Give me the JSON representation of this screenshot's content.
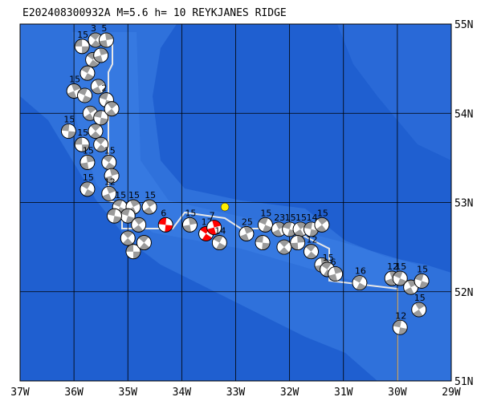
{
  "title": "E202408300932A M=5.6 h= 10 REYKJANES RIDGE",
  "map": {
    "lonlim": [
      -37,
      -29
    ],
    "latlim": [
      51,
      55
    ],
    "lonticks": [
      {
        "value": -37,
        "label": "37W"
      },
      {
        "value": -36,
        "label": "36W"
      },
      {
        "value": -35,
        "label": "35W"
      },
      {
        "value": -34,
        "label": "34W"
      },
      {
        "value": -33,
        "label": "33W"
      },
      {
        "value": -32,
        "label": "32W"
      },
      {
        "value": -31,
        "label": "31W"
      },
      {
        "value": -30,
        "label": "30W"
      },
      {
        "value": -29,
        "label": "29W"
      }
    ],
    "latticks": [
      {
        "value": 51,
        "label": "51N"
      },
      {
        "value": 52,
        "label": "52N"
      },
      {
        "value": 53,
        "label": "53N"
      },
      {
        "value": 54,
        "label": "54N"
      },
      {
        "value": 55,
        "label": "55N"
      }
    ],
    "grid": true,
    "epicenter": {
      "lon": -33.2,
      "lat": 52.95,
      "color": "#ffee00"
    },
    "ball_color": "#9a9a9a",
    "highlight_color": "#ff0000",
    "events": [
      {
        "lon": -35.85,
        "lat": 54.75,
        "label": "15"
      },
      {
        "lon": -35.6,
        "lat": 54.82,
        "label": "3"
      },
      {
        "lon": -35.4,
        "lat": 54.82,
        "label": "5"
      },
      {
        "lon": -35.65,
        "lat": 54.6,
        "label": null
      },
      {
        "lon": -35.5,
        "lat": 54.65,
        "label": null
      },
      {
        "lon": -35.75,
        "lat": 54.45,
        "label": null
      },
      {
        "lon": -36.0,
        "lat": 54.25,
        "label": "15"
      },
      {
        "lon": -35.8,
        "lat": 54.2,
        "label": null
      },
      {
        "lon": -35.55,
        "lat": 54.3,
        "label": null
      },
      {
        "lon": -35.4,
        "lat": 54.15,
        "label": "2"
      },
      {
        "lon": -35.7,
        "lat": 54.0,
        "label": null
      },
      {
        "lon": -35.5,
        "lat": 53.95,
        "label": null
      },
      {
        "lon": -35.3,
        "lat": 54.05,
        "label": null
      },
      {
        "lon": -36.1,
        "lat": 53.8,
        "label": "15"
      },
      {
        "lon": -35.6,
        "lat": 53.8,
        "label": null
      },
      {
        "lon": -35.85,
        "lat": 53.65,
        "label": "15"
      },
      {
        "lon": -35.5,
        "lat": 53.65,
        "label": null
      },
      {
        "lon": -35.75,
        "lat": 53.45,
        "label": "15"
      },
      {
        "lon": -35.35,
        "lat": 53.45,
        "label": "15"
      },
      {
        "lon": -35.3,
        "lat": 53.3,
        "label": null
      },
      {
        "lon": -35.75,
        "lat": 53.15,
        "label": "15"
      },
      {
        "lon": -35.35,
        "lat": 53.1,
        "label": "12"
      },
      {
        "lon": -35.15,
        "lat": 52.95,
        "label": "15"
      },
      {
        "lon": -34.9,
        "lat": 52.95,
        "label": "15"
      },
      {
        "lon": -35.0,
        "lat": 52.85,
        "label": null
      },
      {
        "lon": -34.6,
        "lat": 52.95,
        "label": "15"
      },
      {
        "lon": -35.25,
        "lat": 52.85,
        "label": null
      },
      {
        "lon": -34.8,
        "lat": 52.75,
        "label": null
      },
      {
        "lon": -34.3,
        "lat": 52.75,
        "label": "6",
        "highlight": true
      },
      {
        "lon": -35.0,
        "lat": 52.6,
        "label": null
      },
      {
        "lon": -34.9,
        "lat": 52.45,
        "label": null
      },
      {
        "lon": -34.7,
        "lat": 52.55,
        "label": null
      },
      {
        "lon": -33.85,
        "lat": 52.75,
        "label": "15"
      },
      {
        "lon": -33.55,
        "lat": 52.65,
        "label": "17",
        "highlight": true
      },
      {
        "lon": -33.4,
        "lat": 52.72,
        "label": "7",
        "highlight": true
      },
      {
        "lon": -33.3,
        "lat": 52.55,
        "label": "14"
      },
      {
        "lon": -32.8,
        "lat": 52.65,
        "label": "25"
      },
      {
        "lon": -32.45,
        "lat": 52.75,
        "label": "15"
      },
      {
        "lon": -32.2,
        "lat": 52.7,
        "label": "23"
      },
      {
        "lon": -32.0,
        "lat": 52.7,
        "label": "15"
      },
      {
        "lon": -31.8,
        "lat": 52.7,
        "label": "15"
      },
      {
        "lon": -31.6,
        "lat": 52.7,
        "label": "14"
      },
      {
        "lon": -31.4,
        "lat": 52.75,
        "label": "15"
      },
      {
        "lon": -32.5,
        "lat": 52.55,
        "label": null
      },
      {
        "lon": -32.1,
        "lat": 52.5,
        "label": null
      },
      {
        "lon": -31.85,
        "lat": 52.55,
        "label": null
      },
      {
        "lon": -31.6,
        "lat": 52.45,
        "label": "12"
      },
      {
        "lon": -31.4,
        "lat": 52.3,
        "label": null
      },
      {
        "lon": -31.3,
        "lat": 52.25,
        "label": "15"
      },
      {
        "lon": -31.15,
        "lat": 52.2,
        "label": "6"
      },
      {
        "lon": -30.7,
        "lat": 52.1,
        "label": "16"
      },
      {
        "lon": -30.1,
        "lat": 52.15,
        "label": "12"
      },
      {
        "lon": -29.95,
        "lat": 52.15,
        "label": "15"
      },
      {
        "lon": -29.75,
        "lat": 52.05,
        "label": null
      },
      {
        "lon": -29.55,
        "lat": 52.12,
        "label": "15"
      },
      {
        "lon": -29.6,
        "lat": 51.8,
        "label": "15"
      },
      {
        "lon": -29.95,
        "lat": 51.6,
        "label": "12"
      }
    ]
  }
}
